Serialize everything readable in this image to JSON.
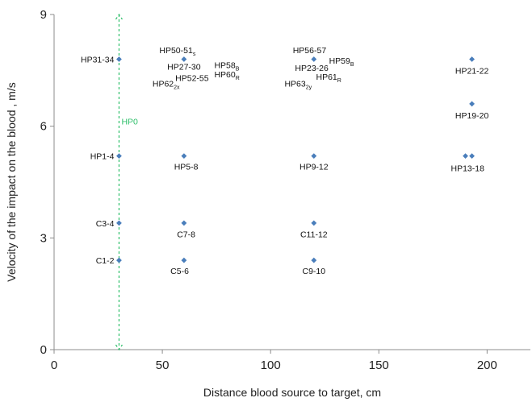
{
  "chart_data": {
    "type": "scatter",
    "xlabel": "Distance blood source to target, cm",
    "ylabel": "Velocity of the impact on the blood , m/s",
    "xlim": [
      0,
      220
    ],
    "ylim": [
      0,
      9
    ],
    "x_ticks": [
      0,
      50,
      100,
      150,
      200
    ],
    "y_ticks": [
      0,
      3,
      6,
      9
    ],
    "grid": false,
    "marker_color": "#4a7ebb",
    "reference_line": {
      "label": "HP0",
      "x": 30,
      "y_range": [
        0,
        9
      ],
      "color": "#2fbf6b"
    },
    "points": [
      {
        "x": 30,
        "y": 7.8
      },
      {
        "x": 30,
        "y": 5.2
      },
      {
        "x": 30,
        "y": 3.4
      },
      {
        "x": 30,
        "y": 2.4
      },
      {
        "x": 60,
        "y": 7.8
      },
      {
        "x": 60,
        "y": 5.2
      },
      {
        "x": 60,
        "y": 3.4
      },
      {
        "x": 60,
        "y": 2.4
      },
      {
        "x": 120,
        "y": 7.8
      },
      {
        "x": 120,
        "y": 5.2
      },
      {
        "x": 120,
        "y": 3.4
      },
      {
        "x": 120,
        "y": 2.4
      },
      {
        "x": 193,
        "y": 7.8
      },
      {
        "x": 193,
        "y": 6.6
      },
      {
        "x": 190,
        "y": 5.2
      },
      {
        "x": 193,
        "y": 5.2
      }
    ],
    "annotations": [
      {
        "text": "HP31-34",
        "sub": "",
        "x": 30,
        "y": 7.8,
        "align": "right"
      },
      {
        "text": "HP1-4",
        "sub": "",
        "x": 30,
        "y": 5.2,
        "align": "right"
      },
      {
        "text": "C3-4",
        "sub": "",
        "x": 30,
        "y": 3.4,
        "align": "right"
      },
      {
        "text": "C1-2",
        "sub": "",
        "x": 30,
        "y": 2.4,
        "align": "right"
      },
      {
        "text": "HP50-51",
        "sub": "s",
        "x": 57,
        "y": 8.05,
        "align": "middle"
      },
      {
        "text": "HP27-30",
        "sub": "",
        "x": 60,
        "y": 7.6,
        "align": "middle"
      },
      {
        "text": "HP58",
        "sub": "B",
        "x": 74,
        "y": 7.65,
        "align": "start"
      },
      {
        "text": "HP52-55",
        "sub": "",
        "x": 56,
        "y": 7.3,
        "align": "start"
      },
      {
        "text": "HP60",
        "sub": "R",
        "x": 74,
        "y": 7.4,
        "align": "start"
      },
      {
        "text": "HP62",
        "sub": "2x",
        "x": 58,
        "y": 7.15,
        "align": "end"
      },
      {
        "text": "HP5-8",
        "sub": "",
        "x": 61,
        "y": 4.92,
        "align": "middle"
      },
      {
        "text": "C7-8",
        "sub": "",
        "x": 61,
        "y": 3.1,
        "align": "middle"
      },
      {
        "text": "C5-6",
        "sub": "",
        "x": 58,
        "y": 2.12,
        "align": "middle"
      },
      {
        "text": "HP56-57",
        "sub": "",
        "x": 118,
        "y": 8.05,
        "align": "middle"
      },
      {
        "text": "HP59",
        "sub": "B",
        "x": 127,
        "y": 7.77,
        "align": "start"
      },
      {
        "text": "HP23-26",
        "sub": "",
        "x": 119,
        "y": 7.57,
        "align": "middle"
      },
      {
        "text": "HP61",
        "sub": "R",
        "x": 121,
        "y": 7.33,
        "align": "start"
      },
      {
        "text": "HP63",
        "sub": "2y",
        "x": 119,
        "y": 7.15,
        "align": "end"
      },
      {
        "text": "HP9-12",
        "sub": "",
        "x": 120,
        "y": 4.92,
        "align": "middle"
      },
      {
        "text": "C11-12",
        "sub": "",
        "x": 120,
        "y": 3.1,
        "align": "middle"
      },
      {
        "text": "C9-10",
        "sub": "",
        "x": 120,
        "y": 2.12,
        "align": "middle"
      },
      {
        "text": "HP21-22",
        "sub": "",
        "x": 193,
        "y": 7.5,
        "align": "middle"
      },
      {
        "text": "HP19-20",
        "sub": "",
        "x": 193,
        "y": 6.3,
        "align": "middle"
      },
      {
        "text": "HP13-18",
        "sub": "",
        "x": 191,
        "y": 4.88,
        "align": "middle"
      }
    ]
  }
}
